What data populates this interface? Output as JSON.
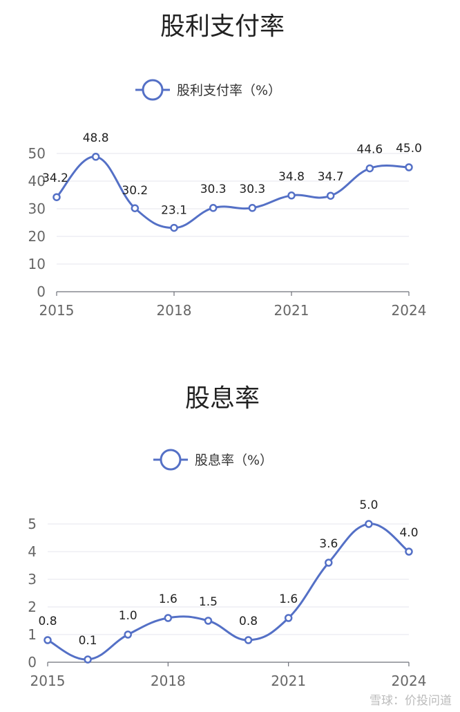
{
  "colors": {
    "line": "#5470c6",
    "text": "#222222",
    "grid": "#e4e6ee"
  },
  "chart_data": [
    {
      "type": "line",
      "title": "股利支付率",
      "x": [
        2015,
        2016,
        2017,
        2018,
        2019,
        2020,
        2021,
        2022,
        2023,
        2024
      ],
      "x_ticks": [
        "2015",
        "2018",
        "2021",
        "2024"
      ],
      "y_ticks": [
        "0",
        "10",
        "20",
        "30",
        "40",
        "50"
      ],
      "ylim": [
        0,
        50
      ],
      "series": [
        {
          "name": "股利支付率（%）",
          "values": [
            34.2,
            48.8,
            30.2,
            23.1,
            30.3,
            30.3,
            34.8,
            34.7,
            44.6,
            45.0
          ],
          "labels": [
            "34.2",
            "48.8",
            "30.2",
            "23.1",
            "30.3",
            "30.3",
            "34.8",
            "34.7",
            "44.6",
            "45.0"
          ]
        }
      ],
      "grid": true,
      "legend": "top-center"
    },
    {
      "type": "line",
      "title": "股息率",
      "x": [
        2015,
        2016,
        2017,
        2018,
        2019,
        2020,
        2021,
        2022,
        2023,
        2024
      ],
      "x_ticks": [
        "2015",
        "2018",
        "2021",
        "2024"
      ],
      "y_ticks": [
        "0",
        "1",
        "2",
        "3",
        "4",
        "5"
      ],
      "ylim": [
        0,
        5
      ],
      "series": [
        {
          "name": "股息率（%）",
          "values": [
            0.8,
            0.1,
            1.0,
            1.6,
            1.5,
            0.8,
            1.6,
            3.6,
            5.0,
            4.0
          ],
          "labels": [
            "0.8",
            "0.1",
            "1.0",
            "1.6",
            "1.5",
            "0.8",
            "1.6",
            "3.6",
            "5.0",
            "4.0"
          ]
        }
      ],
      "grid": true,
      "legend": "top-center"
    }
  ],
  "watermark": "雪球：价投问道"
}
